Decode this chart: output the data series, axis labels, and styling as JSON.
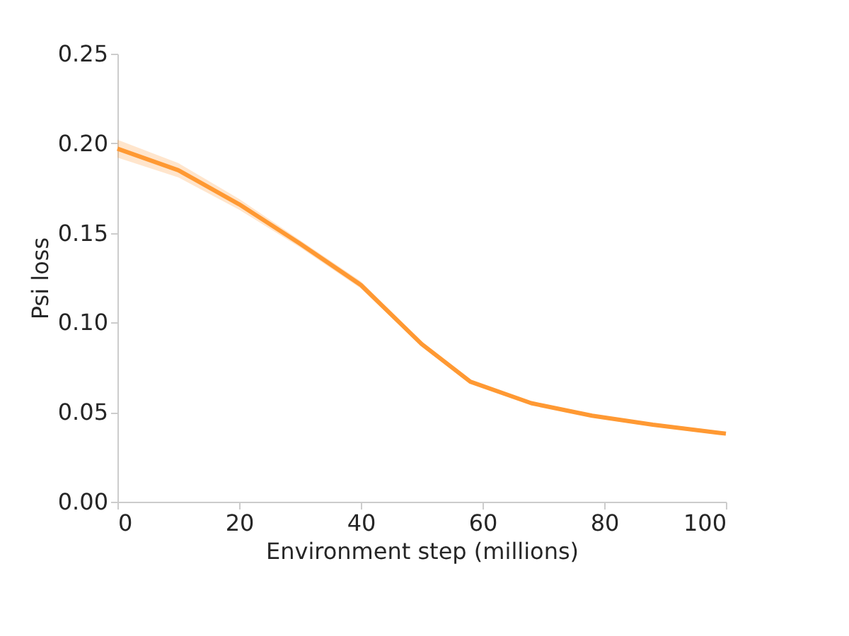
{
  "chart_data": {
    "type": "line",
    "xlabel": "Environment step (millions)",
    "ylabel": "Psi loss",
    "x": [
      0,
      10,
      20,
      30,
      40,
      50,
      58,
      68,
      78,
      88,
      100
    ],
    "series": [
      {
        "color": "#ff9933",
        "values": [
          0.197,
          0.185,
          0.166,
          0.144,
          0.121,
          0.088,
          0.067,
          0.055,
          0.048,
          0.043,
          0.038
        ],
        "lower": [
          0.192,
          0.181,
          0.163,
          0.142,
          0.119,
          0.087,
          0.066,
          0.054,
          0.047,
          0.042,
          0.037
        ],
        "upper": [
          0.202,
          0.189,
          0.169,
          0.146,
          0.123,
          0.089,
          0.068,
          0.056,
          0.049,
          0.044,
          0.039
        ]
      }
    ],
    "xlim": [
      0,
      100
    ],
    "xticks": [
      0,
      20,
      40,
      60,
      80,
      100
    ],
    "ylim": [
      0,
      0.25
    ],
    "yticks": [
      {
        "value": 0,
        "label": "0.00"
      },
      {
        "value": 0.05,
        "label": "0.05"
      },
      {
        "value": 0.1,
        "label": "0.10"
      },
      {
        "value": 0.15,
        "label": "0.15"
      },
      {
        "value": 0.2,
        "label": "0.20"
      },
      {
        "value": 0.25,
        "label": "0.25"
      }
    ],
    "marker": "none",
    "line_style": "solid"
  }
}
